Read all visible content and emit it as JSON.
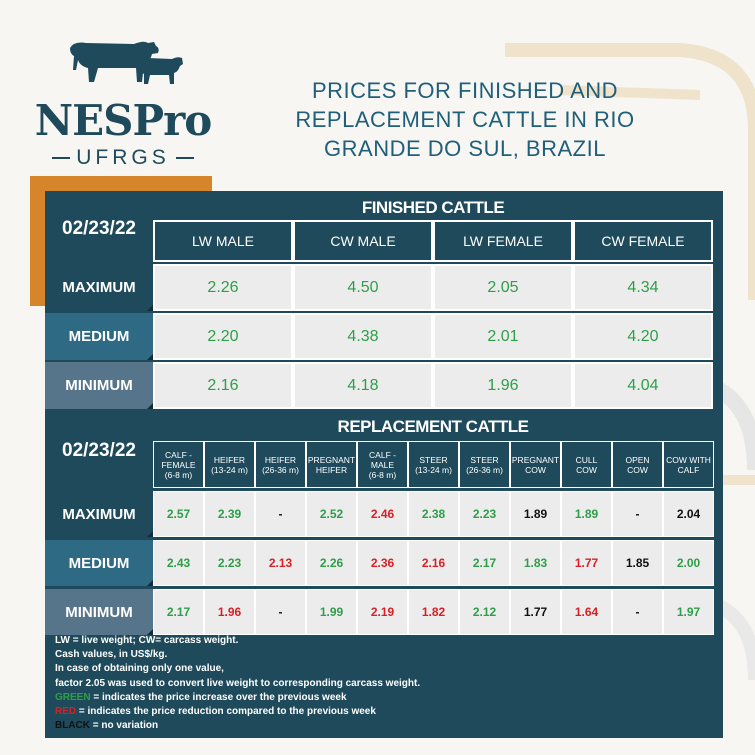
{
  "brand": {
    "name": "NESPro",
    "sub": "UFRGS",
    "logo_icon": "cattle-icon"
  },
  "title": "PRICES FOR FINISHED AND\nREPLACEMENT CATTLE IN RIO\nGRANDE DO SUL, BRAZIL",
  "colors": {
    "panel": "#1e4a5c",
    "label_max": "#1e4a5c",
    "label_med": "#2f6a84",
    "label_min": "#56758a",
    "orange": "#d6852a",
    "green": "#2e9e48",
    "red": "#d81f26",
    "black": "#111111"
  },
  "finished": {
    "date": "02/23/22",
    "heading": "FINISHED CATTLE",
    "columns": [
      "LW  MALE",
      "CW MALE",
      "LW FEMALE",
      "CW FEMALE"
    ],
    "rows": [
      {
        "label": "MAXIMUM",
        "values": [
          {
            "v": "2.26",
            "c": "green"
          },
          {
            "v": "4.50",
            "c": "green"
          },
          {
            "v": "2.05",
            "c": "green"
          },
          {
            "v": "4.34",
            "c": "green"
          }
        ]
      },
      {
        "label": "MEDIUM",
        "values": [
          {
            "v": "2.20",
            "c": "green"
          },
          {
            "v": "4.38",
            "c": "green"
          },
          {
            "v": "2.01",
            "c": "green"
          },
          {
            "v": "4.20",
            "c": "green"
          }
        ]
      },
      {
        "label": "MINIMUM",
        "values": [
          {
            "v": "2.16",
            "c": "green"
          },
          {
            "v": "4.18",
            "c": "green"
          },
          {
            "v": "1.96",
            "c": "green"
          },
          {
            "v": "4.04",
            "c": "green"
          }
        ]
      }
    ]
  },
  "replacement": {
    "date": "02/23/22",
    "heading": "REPLACEMENT CATTLE",
    "columns": [
      [
        "CALF -",
        "FEMALE",
        "(6-8 m)"
      ],
      [
        "HEIFER",
        "(13-24 m)"
      ],
      [
        "HEIFER",
        "(26-36 m)"
      ],
      [
        "PREGNANT",
        "HEIFER"
      ],
      [
        "CALF -",
        "MALE",
        "(6-8 m)"
      ],
      [
        "STEER",
        "(13-24 m)"
      ],
      [
        "STEER",
        "(26-36 m)"
      ],
      [
        "PREGNANT",
        "COW"
      ],
      [
        "CULL",
        "COW"
      ],
      [
        "OPEN",
        "COW"
      ],
      [
        "COW WITH",
        "CALF"
      ]
    ],
    "rows": [
      {
        "label": "MAXIMUM",
        "values": [
          {
            "v": "2.57",
            "c": "green"
          },
          {
            "v": "2.39",
            "c": "green"
          },
          {
            "v": "-",
            "c": "black"
          },
          {
            "v": "2.52",
            "c": "green"
          },
          {
            "v": "2.46",
            "c": "red"
          },
          {
            "v": "2.38",
            "c": "green"
          },
          {
            "v": "2.23",
            "c": "green"
          },
          {
            "v": "1.89",
            "c": "black"
          },
          {
            "v": "1.89",
            "c": "green"
          },
          {
            "v": "-",
            "c": "black"
          },
          {
            "v": "2.04",
            "c": "black"
          }
        ]
      },
      {
        "label": "MEDIUM",
        "values": [
          {
            "v": "2.43",
            "c": "green"
          },
          {
            "v": "2.23",
            "c": "green"
          },
          {
            "v": "2.13",
            "c": "red"
          },
          {
            "v": "2.26",
            "c": "green"
          },
          {
            "v": "2.36",
            "c": "red"
          },
          {
            "v": "2.16",
            "c": "red"
          },
          {
            "v": "2.17",
            "c": "green"
          },
          {
            "v": "1.83",
            "c": "green"
          },
          {
            "v": "1.77",
            "c": "red"
          },
          {
            "v": "1.85",
            "c": "black"
          },
          {
            "v": "2.00",
            "c": "green"
          }
        ]
      },
      {
        "label": "MINIMUM",
        "values": [
          {
            "v": "2.17",
            "c": "green"
          },
          {
            "v": "1.96",
            "c": "red"
          },
          {
            "v": "-",
            "c": "black"
          },
          {
            "v": "1.99",
            "c": "green"
          },
          {
            "v": "2.19",
            "c": "red"
          },
          {
            "v": "1.82",
            "c": "red"
          },
          {
            "v": "2.12",
            "c": "green"
          },
          {
            "v": "1.77",
            "c": "black"
          },
          {
            "v": "1.64",
            "c": "red"
          },
          {
            "v": "-",
            "c": "black"
          },
          {
            "v": "1.97",
            "c": "green"
          }
        ]
      }
    ]
  },
  "notes": [
    {
      "text": "LW = live weight; CW= carcass weight."
    },
    {
      "text": "Cash values, in US$/kg."
    },
    {
      "text": "In case of  obtaining  only one value,"
    },
    {
      "text": "factor  2.05 was used to convert live weight to corresponding  carcass weight."
    },
    {
      "key": "GREEN",
      "key_color": "green",
      "text": " = indicates the price increase over the previous week"
    },
    {
      "key": "RED",
      "key_color": "red",
      "text": " = indicates the price reduction compared to the previous week"
    },
    {
      "key": "BLACK",
      "key_color": "black",
      "text": " = no variation"
    }
  ]
}
